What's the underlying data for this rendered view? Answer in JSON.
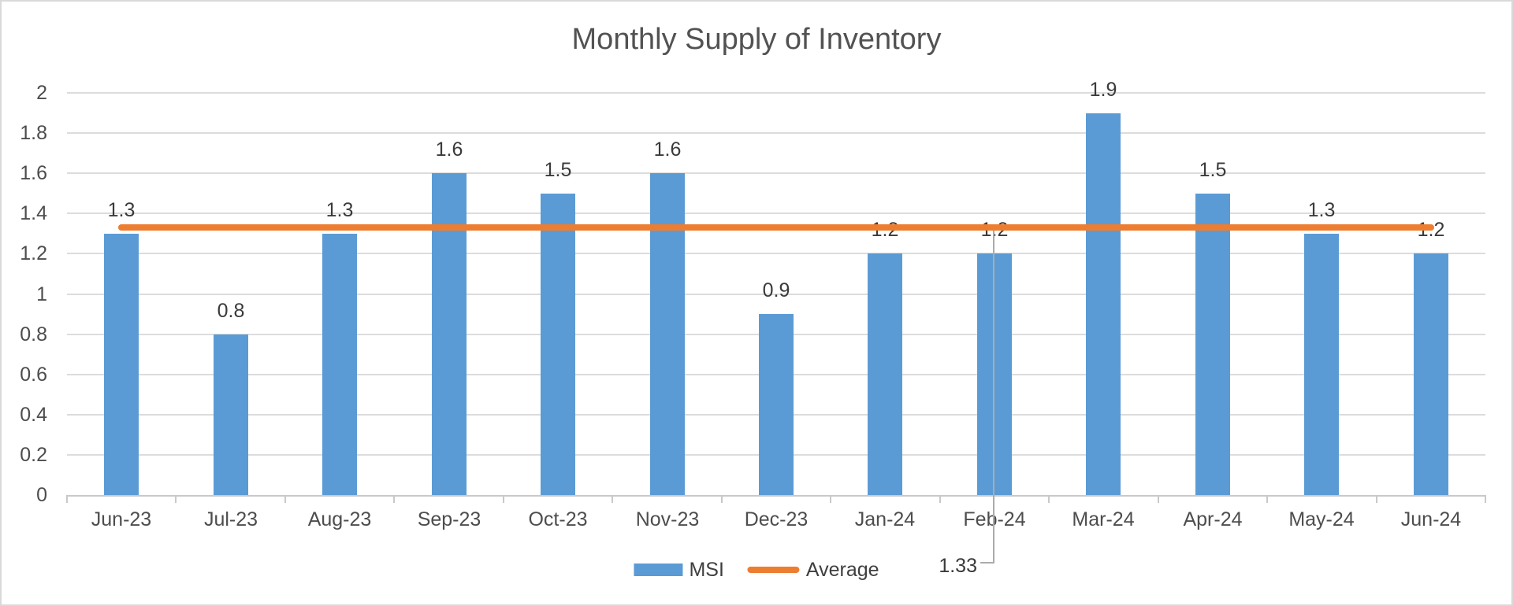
{
  "title": "Monthly Supply of Inventory",
  "chart_data": {
    "type": "bar",
    "title": "Monthly Supply of Inventory",
    "categories": [
      "Jun-23",
      "Jul-23",
      "Aug-23",
      "Sep-23",
      "Oct-23",
      "Nov-23",
      "Dec-23",
      "Jan-24",
      "Feb-24",
      "Mar-24",
      "Apr-24",
      "May-24",
      "Jun-24"
    ],
    "series": [
      {
        "name": "MSI",
        "type": "bar",
        "color": "#5b9bd5",
        "values": [
          1.3,
          0.8,
          1.3,
          1.6,
          1.5,
          1.6,
          0.9,
          1.2,
          1.2,
          1.9,
          1.5,
          1.3,
          1.2
        ],
        "data_labels": [
          "1.3",
          "0.8",
          "1.3",
          "1.6",
          "1.5",
          "1.6",
          "0.9",
          "1.2",
          "1.2",
          "1.9",
          "1.5",
          "1.3",
          "1.2"
        ]
      },
      {
        "name": "Average",
        "type": "line",
        "color": "#ed7d31",
        "value": 1.33
      }
    ],
    "callout": {
      "value": "1.33",
      "category": "Feb-24"
    },
    "xlabel": "",
    "ylabel": "",
    "ylim": [
      0,
      2
    ],
    "ytick_step": 0.2,
    "ytick_labels": [
      "0",
      "0.2",
      "0.4",
      "0.6",
      "0.8",
      "1",
      "1.2",
      "1.4",
      "1.6",
      "1.8",
      "2"
    ],
    "grid": true,
    "legend_position": "bottom",
    "colors": {
      "bar": "#5b9bd5",
      "average_line": "#ed7d31",
      "gridline": "#dcdcdc",
      "axis": "#c9c9c9",
      "text": "#4d4d4d",
      "leader_line": "#ababab"
    }
  }
}
